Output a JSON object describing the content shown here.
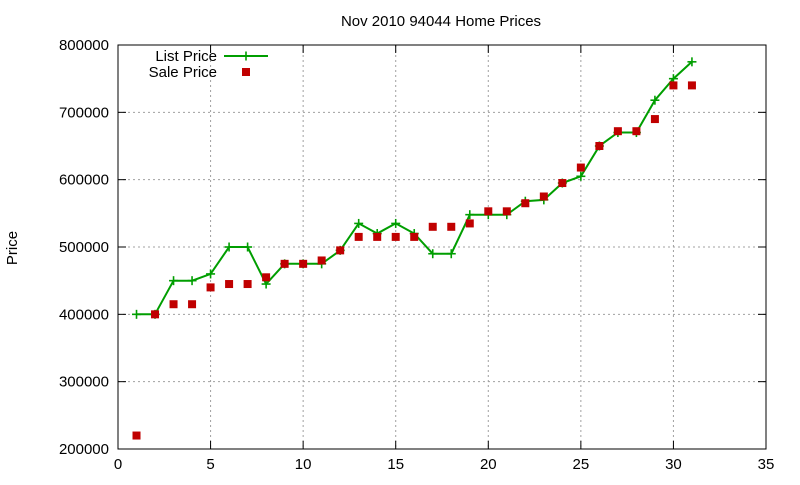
{
  "chart_data": {
    "type": "line",
    "title": "Nov 2010 94044 Home Prices",
    "xlabel": "",
    "ylabel": "Price",
    "xlim": [
      0,
      35
    ],
    "ylim": [
      200000,
      800000
    ],
    "x_ticks": [
      "0",
      "5",
      "10",
      "15",
      "20",
      "25",
      "30",
      "35"
    ],
    "y_ticks": [
      "200000",
      "300000",
      "400000",
      "500000",
      "600000",
      "700000",
      "800000"
    ],
    "grid": true,
    "legend_position": "top-left",
    "series": [
      {
        "name": "List Price",
        "style": "lines+points",
        "marker": "plus",
        "color": "#009e00",
        "points": [
          [
            1,
            400000
          ],
          [
            2,
            400000
          ],
          [
            3,
            450000
          ],
          [
            4,
            450000
          ],
          [
            5,
            460000
          ],
          [
            6,
            500000
          ],
          [
            7,
            500000
          ],
          [
            8,
            445000
          ],
          [
            9,
            475000
          ],
          [
            10,
            475000
          ],
          [
            11,
            475000
          ],
          [
            12,
            495000
          ],
          [
            13,
            535000
          ],
          [
            14,
            520000
          ],
          [
            15,
            535000
          ],
          [
            16,
            520000
          ],
          [
            17,
            490000
          ],
          [
            18,
            490000
          ],
          [
            19,
            548000
          ],
          [
            20,
            548000
          ],
          [
            21,
            548000
          ],
          [
            22,
            568000
          ],
          [
            23,
            570000
          ],
          [
            24,
            595000
          ],
          [
            25,
            605000
          ],
          [
            26,
            650000
          ],
          [
            27,
            670000
          ],
          [
            28,
            670000
          ],
          [
            29,
            718000
          ],
          [
            30,
            750000
          ],
          [
            31,
            775000
          ]
        ]
      },
      {
        "name": "Sale Price",
        "style": "points",
        "marker": "square",
        "color": "#c00000",
        "points": [
          [
            1,
            220000
          ],
          [
            2,
            400000
          ],
          [
            3,
            415000
          ],
          [
            4,
            415000
          ],
          [
            5,
            440000
          ],
          [
            6,
            445000
          ],
          [
            7,
            445000
          ],
          [
            8,
            455000
          ],
          [
            9,
            475000
          ],
          [
            10,
            475000
          ],
          [
            11,
            480000
          ],
          [
            12,
            495000
          ],
          [
            13,
            515000
          ],
          [
            14,
            515000
          ],
          [
            15,
            515000
          ],
          [
            16,
            515000
          ],
          [
            17,
            530000
          ],
          [
            18,
            530000
          ],
          [
            19,
            535000
          ],
          [
            20,
            553000
          ],
          [
            21,
            553000
          ],
          [
            22,
            565000
          ],
          [
            23,
            575000
          ],
          [
            24,
            595000
          ],
          [
            25,
            618000
          ],
          [
            26,
            650000
          ],
          [
            27,
            672000
          ],
          [
            28,
            672000
          ],
          [
            29,
            690000
          ],
          [
            30,
            740000
          ],
          [
            31,
            740000
          ]
        ]
      }
    ]
  }
}
